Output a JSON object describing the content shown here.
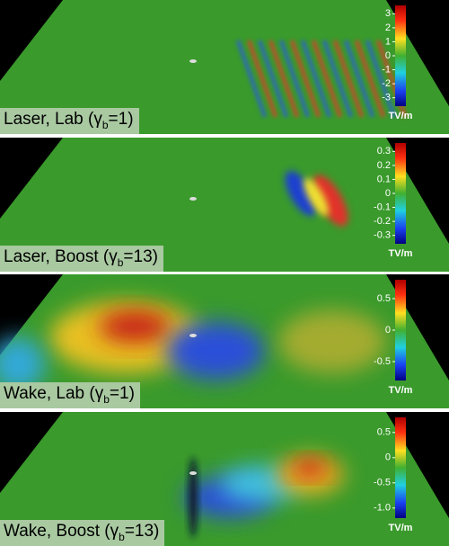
{
  "panels": [
    {
      "label": {
        "before": "Laser, Lab (γ",
        "subscript": "b",
        "after": "=1)"
      },
      "colorbar": {
        "lim": [
          -3.6,
          3.6
        ],
        "ticks": [
          3,
          2,
          1,
          0,
          -1,
          -2,
          -3
        ],
        "unit": "TV/m"
      }
    },
    {
      "label": {
        "before": "Laser, Boost (γ",
        "subscript": "b",
        "after": "=13)"
      },
      "colorbar": {
        "lim": [
          -0.36,
          0.36
        ],
        "ticks": [
          0.3,
          0.2,
          0.1,
          0,
          -0.1,
          -0.2,
          -0.3
        ],
        "unit": "TV/m"
      }
    },
    {
      "label": {
        "before": "Wake, Lab (γ",
        "subscript": "b",
        "after": "=1)"
      },
      "colorbar": {
        "lim": [
          -0.8,
          0.8
        ],
        "ticks": [
          0.5,
          0,
          -0.5
        ],
        "unit": "TV/m"
      }
    },
    {
      "label": {
        "before": "Wake, Boost (γ",
        "subscript": "b",
        "after": "=13)"
      },
      "colorbar": {
        "lim": [
          -1.2,
          0.8
        ],
        "ticks": [
          0.5,
          0,
          -0.5,
          {
            "value": -1,
            "label": "-1.0"
          }
        ],
        "unit": "TV/m"
      }
    }
  ]
}
